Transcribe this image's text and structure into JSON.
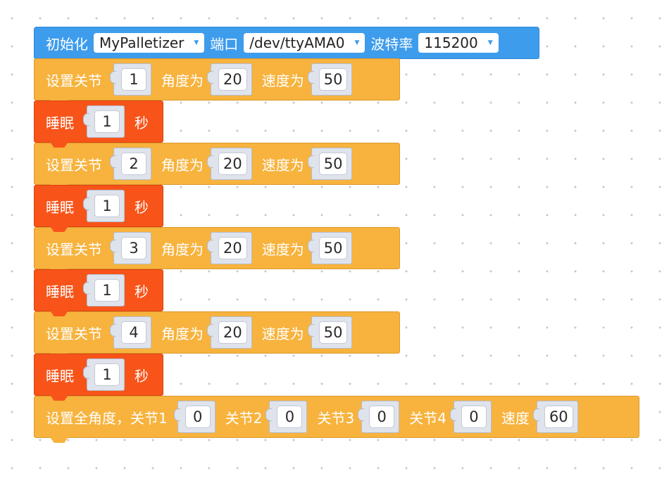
{
  "init_block": {
    "label": "初始化",
    "device": "MyPalletizer",
    "port_label": "端口",
    "port": "/dev/ttyAMA0",
    "baud_label": "波特率",
    "baud": "115200"
  },
  "set_joint_blocks": [
    {
      "label": "设置关节",
      "joint": "1",
      "angle_label": "角度为",
      "angle": "20",
      "speed_label": "速度为",
      "speed": "50"
    },
    {
      "label": "设置关节",
      "joint": "2",
      "angle_label": "角度为",
      "angle": "20",
      "speed_label": "速度为",
      "speed": "50"
    },
    {
      "label": "设置关节",
      "joint": "3",
      "angle_label": "角度为",
      "angle": "20",
      "speed_label": "速度为",
      "speed": "50"
    },
    {
      "label": "设置关节",
      "joint": "4",
      "angle_label": "角度为",
      "angle": "20",
      "speed_label": "速度为",
      "speed": "50"
    }
  ],
  "sleep_blocks": [
    {
      "label": "睡眠",
      "value": "1",
      "unit": "秒"
    },
    {
      "label": "睡眠",
      "value": "1",
      "unit": "秒"
    },
    {
      "label": "睡眠",
      "value": "1",
      "unit": "秒"
    },
    {
      "label": "睡眠",
      "value": "1",
      "unit": "秒"
    }
  ],
  "set_all_angles_block": {
    "label": "设置全角度，关节1",
    "j1": "0",
    "j2_label": "关节2",
    "j2": "0",
    "j3_label": "关节3",
    "j3": "0",
    "j4_label": "关节4",
    "j4": "0",
    "speed_label": "速度",
    "speed": "60"
  },
  "colors": {
    "init_block": "#3e9cec",
    "joint_block": "#f7b33d",
    "sleep_block": "#f8541a",
    "socket": "#dfe3ec"
  }
}
